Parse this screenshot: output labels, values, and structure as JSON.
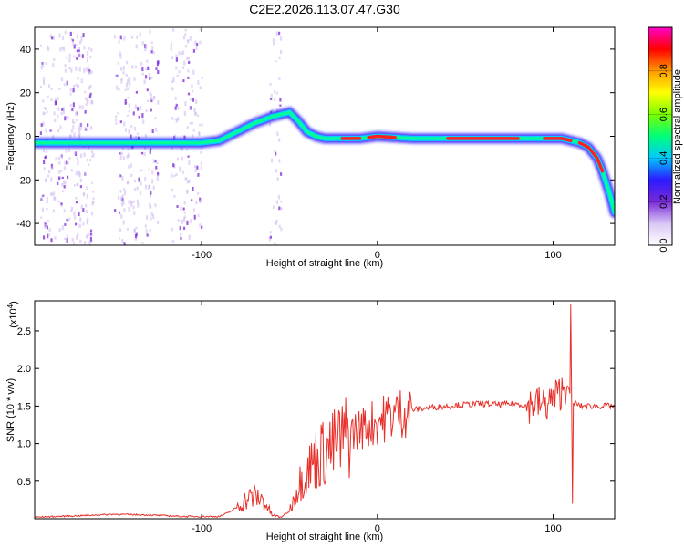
{
  "chart_data": [
    {
      "type": "heatmap",
      "title": "C2E2.2026.113.07.47.G30",
      "xlabel": "Height of straight line (km)",
      "ylabel": "Frequency (Hz)",
      "xlim": [
        -195,
        135
      ],
      "ylim": [
        -50,
        50
      ],
      "x_ticks": [
        -100,
        0,
        100
      ],
      "y_ticks": [
        -40,
        -20,
        0,
        20,
        40
      ],
      "colorbar": {
        "label": "Normalized spectral amplitude",
        "range": [
          0,
          1
        ],
        "ticks": [
          0.0,
          0.2,
          0.4,
          0.6,
          0.8
        ],
        "tick_labels": [
          "0.0",
          "0.2",
          "0.4",
          "0.6",
          "0.8"
        ],
        "colormap": [
          "#ffffff",
          "#d9c6f5",
          "#7a2ad9",
          "#2a1aff",
          "#00c8ff",
          "#00ff7a",
          "#7aff00",
          "#ffff00",
          "#ff9a00",
          "#ff0000",
          "#ff00c8"
        ]
      },
      "ridge": {
        "x": [
          -195,
          -160,
          -130,
          -110,
          -100,
          -90,
          -80,
          -70,
          -60,
          -50,
          -45,
          -40,
          -35,
          -30,
          -20,
          -10,
          0,
          20,
          40,
          60,
          80,
          90,
          100,
          105,
          110,
          115,
          120,
          125,
          128,
          132,
          135
        ],
        "y": [
          -3,
          -3,
          -3,
          -3,
          -3,
          -2,
          2,
          6,
          9,
          11,
          7,
          2,
          0,
          -1,
          -1,
          -1,
          0,
          -1,
          -1,
          -1,
          -1,
          -1,
          -1,
          -1,
          -2,
          -3,
          -5,
          -10,
          -16,
          -26,
          -35
        ]
      }
    },
    {
      "type": "line",
      "xlabel": "Height of straight line (km)",
      "ylabel": "SNR (10 * v/v)",
      "y_multiplier": "(x10",
      "y_multiplier_exp": "4",
      "y_multiplier_close": ")",
      "xlim": [
        -195,
        135
      ],
      "ylim": [
        0,
        2.9
      ],
      "x_ticks": [
        -100,
        0,
        100
      ],
      "y_ticks": [
        0.5,
        1.0,
        1.5,
        2.0,
        2.5
      ],
      "y_tick_labels": [
        "0.5",
        "1.0",
        "1.5",
        "2.0",
        "2.5"
      ],
      "series": [
        {
          "name": "SNR",
          "color": "#e8302a",
          "x": [
            -195,
            -170,
            -150,
            -130,
            -110,
            -90,
            -85,
            -80,
            -75,
            -70,
            -65,
            -60,
            -55,
            -50,
            -45,
            -40,
            -35,
            -30,
            -25,
            -20,
            -15,
            -10,
            -5,
            0,
            10,
            20,
            30,
            40,
            50,
            60,
            70,
            80,
            85,
            90,
            95,
            100,
            105,
            108,
            110,
            111,
            112,
            115,
            120,
            130,
            135
          ],
          "y": [
            0.02,
            0.04,
            0.06,
            0.05,
            0.03,
            0.03,
            0.08,
            0.15,
            0.25,
            0.3,
            0.25,
            0.05,
            0.02,
            0.1,
            0.45,
            0.65,
            0.8,
            0.9,
            0.95,
            1.05,
            1.15,
            1.2,
            1.25,
            1.3,
            1.4,
            1.45,
            1.48,
            1.5,
            1.52,
            1.53,
            1.52,
            1.53,
            1.5,
            1.55,
            1.5,
            1.6,
            1.7,
            1.8,
            1.6,
            1.5,
            1.55,
            1.5,
            1.5,
            1.5,
            1.5
          ]
        }
      ]
    }
  ]
}
